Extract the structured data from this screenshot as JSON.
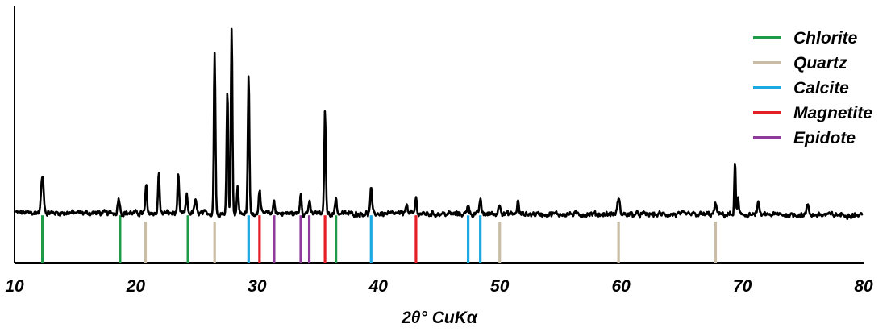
{
  "chart_data": {
    "type": "line",
    "xlabel": "2θ° CuKα",
    "ylabel": "",
    "xlim": [
      10,
      80
    ],
    "ylim": [
      0,
      1
    ],
    "x_ticks": [
      "10",
      "20",
      "30",
      "40",
      "50",
      "60",
      "70",
      "80"
    ],
    "x_tick_values": [
      10,
      20,
      30,
      40,
      50,
      60,
      70,
      80
    ],
    "grid": false,
    "legend_position": "top-right",
    "baseline": 0.195,
    "peaks": [
      {
        "x": 12.3,
        "h": 0.14,
        "w": 0.15
      },
      {
        "x": 18.6,
        "h": 0.06,
        "w": 0.12
      },
      {
        "x": 20.85,
        "h": 0.11,
        "w": 0.09
      },
      {
        "x": 21.9,
        "h": 0.16,
        "w": 0.09
      },
      {
        "x": 23.5,
        "h": 0.15,
        "w": 0.09
      },
      {
        "x": 24.2,
        "h": 0.07,
        "w": 0.1
      },
      {
        "x": 24.9,
        "h": 0.05,
        "w": 0.12
      },
      {
        "x": 26.5,
        "h": 0.63,
        "w": 0.09
      },
      {
        "x": 27.55,
        "h": 0.48,
        "w": 0.09
      },
      {
        "x": 27.9,
        "h": 0.72,
        "w": 0.09
      },
      {
        "x": 28.4,
        "h": 0.1,
        "w": 0.1
      },
      {
        "x": 29.3,
        "h": 0.54,
        "w": 0.09
      },
      {
        "x": 30.2,
        "h": 0.1,
        "w": 0.1
      },
      {
        "x": 31.4,
        "h": 0.05,
        "w": 0.1
      },
      {
        "x": 33.6,
        "h": 0.08,
        "w": 0.1
      },
      {
        "x": 34.3,
        "h": 0.04,
        "w": 0.12
      },
      {
        "x": 35.6,
        "h": 0.4,
        "w": 0.09
      },
      {
        "x": 36.5,
        "h": 0.06,
        "w": 0.1
      },
      {
        "x": 39.4,
        "h": 0.1,
        "w": 0.1
      },
      {
        "x": 42.3,
        "h": 0.04,
        "w": 0.12
      },
      {
        "x": 43.1,
        "h": 0.06,
        "w": 0.1
      },
      {
        "x": 47.4,
        "h": 0.04,
        "w": 0.11
      },
      {
        "x": 48.4,
        "h": 0.06,
        "w": 0.1
      },
      {
        "x": 50.0,
        "h": 0.04,
        "w": 0.14
      },
      {
        "x": 51.5,
        "h": 0.05,
        "w": 0.1
      },
      {
        "x": 59.8,
        "h": 0.06,
        "w": 0.14
      },
      {
        "x": 67.8,
        "h": 0.04,
        "w": 0.13
      },
      {
        "x": 69.4,
        "h": 0.2,
        "w": 0.08
      },
      {
        "x": 69.65,
        "h": 0.06,
        "w": 0.08
      },
      {
        "x": 71.3,
        "h": 0.05,
        "w": 0.1
      },
      {
        "x": 75.4,
        "h": 0.04,
        "w": 0.12
      }
    ],
    "reference_lines": [
      {
        "mineral": "Chlorite",
        "x": [
          12.3,
          18.7,
          24.3,
          36.5
        ]
      },
      {
        "mineral": "Quartz",
        "x": [
          20.8,
          26.5,
          50.0,
          59.8,
          67.8
        ]
      },
      {
        "mineral": "Calcite",
        "x": [
          29.3,
          39.4,
          47.4,
          48.4
        ]
      },
      {
        "mineral": "Magnetite",
        "x": [
          30.2,
          35.6,
          43.1
        ]
      },
      {
        "mineral": "Epidote",
        "x": [
          31.4,
          33.6,
          34.3
        ]
      }
    ],
    "reference_line_heights": {
      "default": 0.185,
      "Quartz": 0.16
    },
    "legend": [
      {
        "name": "Chlorite",
        "color": "#1f9a48"
      },
      {
        "name": "Quartz",
        "color": "#c9bda5"
      },
      {
        "name": "Calcite",
        "color": "#1ba9e1"
      },
      {
        "name": "Magnetite",
        "color": "#e41f26"
      },
      {
        "name": "Epidote",
        "color": "#8e3b9c"
      }
    ],
    "pattern_color": "#000000",
    "axis_color": "#000000"
  }
}
